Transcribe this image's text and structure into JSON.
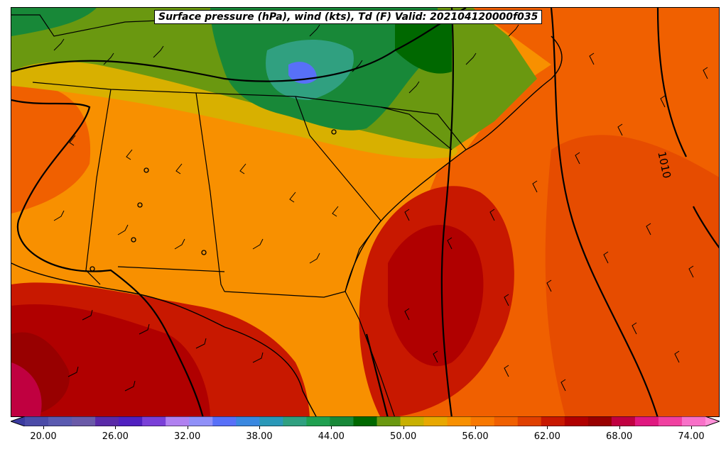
{
  "title": "Surface pressure (hPa), wind (kts), Td (F) Valid: 202104120000f035",
  "isobar_label": "1010",
  "colorbar": {
    "ticks": [
      "20.00",
      "26.00",
      "32.00",
      "38.00",
      "44.00",
      "50.00",
      "56.00",
      "62.00",
      "68.00",
      "74.00"
    ],
    "colors": [
      "#3b3ba0",
      "#4b4ba8",
      "#5a5ab0",
      "#6a5aa8",
      "#5a2aa8",
      "#5020c0",
      "#7a40d8",
      "#b080f0",
      "#9090f8",
      "#5870f8",
      "#3a88e0",
      "#2a98b8",
      "#30a080",
      "#20a050",
      "#188838",
      "#006800",
      "#6a9810",
      "#c8b000",
      "#e8a800",
      "#f89000",
      "#f87800",
      "#f06000",
      "#e04000",
      "#c81800",
      "#b00000",
      "#980000",
      "#c00040",
      "#e01880",
      "#f040a0",
      "#f870c8",
      "#ff90d8"
    ],
    "range": [
      18,
      76
    ]
  },
  "fields": {
    "colors": {
      "gulf_dark": "#b00000",
      "gulf_red": "#c81800",
      "ocean_red": "#e04000",
      "ocean_orange": "#f06000",
      "land_orange": "#f89000",
      "land_light": "#f8a000",
      "yellow": "#d8b000",
      "olive": "#6a9810",
      "green": "#188838",
      "dark_green": "#006800",
      "teal": "#30a080",
      "blue": "#5870f8",
      "magenta": "#c00040"
    }
  }
}
